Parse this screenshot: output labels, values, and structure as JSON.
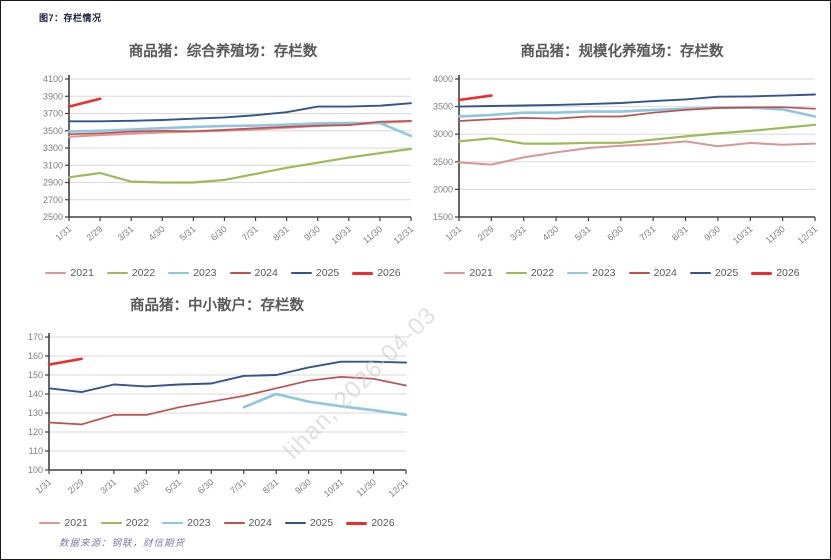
{
  "figure_label": "图7：存栏情况",
  "watermark": "lihan, 2026-04-03",
  "source_note": "数据来源：钢联，财信期货",
  "months": [
    "1/31",
    "2/29",
    "3/31",
    "4/30",
    "5/31",
    "6/30",
    "7/31",
    "8/31",
    "9/30",
    "10/31",
    "11/30",
    "12/31"
  ],
  "years": [
    "2021",
    "2022",
    "2023",
    "2024",
    "2025",
    "2026"
  ],
  "series_colors": {
    "2021": "#DA9694",
    "2022": "#9BBB59",
    "2023": "#8DC6E0",
    "2024": "#C0504D",
    "2025": "#31558C",
    "2026": "#EE2C2C"
  },
  "grid_color": "#d9d9d9",
  "axis_color": "#404040",
  "chart_data": [
    {
      "type": "line",
      "title": "商品猪：综合养殖场：存栏数",
      "xlabel": "",
      "ylabel": "",
      "ylim": [
        2500,
        4100
      ],
      "ystep": 200,
      "grid": true,
      "legend_position": "bottom",
      "categories": [
        "1/31",
        "2/29",
        "3/31",
        "4/30",
        "5/31",
        "6/30",
        "7/31",
        "8/31",
        "9/30",
        "10/31",
        "11/30",
        "12/31"
      ],
      "series": [
        {
          "name": "2021",
          "values": [
            3430,
            3450,
            3465,
            3480,
            3490,
            3500,
            3515,
            3535,
            3555,
            3570,
            3590,
            3610
          ]
        },
        {
          "name": "2022",
          "values": [
            2960,
            3010,
            2910,
            2900,
            2900,
            2930,
            3000,
            3070,
            3130,
            3190,
            3240,
            3290
          ]
        },
        {
          "name": "2023",
          "values": [
            3490,
            3500,
            3515,
            3530,
            3545,
            3555,
            3560,
            3570,
            3585,
            3590,
            3590,
            3440
          ]
        },
        {
          "name": "2024",
          "values": [
            3460,
            3470,
            3490,
            3500,
            3495,
            3510,
            3530,
            3545,
            3560,
            3565,
            3605,
            3615
          ]
        },
        {
          "name": "2025",
          "values": [
            3610,
            3610,
            3615,
            3625,
            3640,
            3655,
            3680,
            3715,
            3780,
            3780,
            3790,
            3820
          ]
        },
        {
          "name": "2026",
          "values": [
            3780,
            3870,
            null,
            null,
            null,
            null,
            null,
            null,
            null,
            null,
            null,
            null
          ]
        }
      ]
    },
    {
      "type": "line",
      "title": "商品猪：规模化养殖场：存栏数",
      "xlabel": "",
      "ylabel": "",
      "ylim": [
        1500,
        4000
      ],
      "ystep": 500,
      "grid": true,
      "legend_position": "bottom",
      "categories": [
        "1/31",
        "2/29",
        "3/31",
        "4/30",
        "5/31",
        "6/30",
        "7/31",
        "8/31",
        "9/30",
        "10/31",
        "11/30",
        "12/31"
      ],
      "series": [
        {
          "name": "2021",
          "values": [
            2490,
            2450,
            2580,
            2670,
            2750,
            2790,
            2820,
            2870,
            2780,
            2840,
            2810,
            2830
          ]
        },
        {
          "name": "2022",
          "values": [
            2870,
            2925,
            2830,
            2830,
            2845,
            2845,
            2900,
            2960,
            3015,
            3060,
            3115,
            3170
          ]
        },
        {
          "name": "2023",
          "values": [
            3320,
            3350,
            3390,
            3390,
            3410,
            3410,
            3440,
            3460,
            3480,
            3480,
            3450,
            3320
          ]
        },
        {
          "name": "2024",
          "values": [
            3240,
            3270,
            3295,
            3280,
            3320,
            3320,
            3390,
            3440,
            3475,
            3485,
            3490,
            3460
          ]
        },
        {
          "name": "2025",
          "values": [
            3500,
            3510,
            3520,
            3530,
            3545,
            3565,
            3600,
            3630,
            3680,
            3685,
            3700,
            3720
          ]
        },
        {
          "name": "2026",
          "values": [
            3620,
            3700,
            null,
            null,
            null,
            null,
            null,
            null,
            null,
            null,
            null,
            null
          ]
        }
      ]
    },
    {
      "type": "line",
      "title": "商品猪：中小散户：存栏数",
      "xlabel": "",
      "ylabel": "",
      "ylim": [
        100,
        170
      ],
      "ystep": 10,
      "grid": true,
      "legend_position": "bottom",
      "categories": [
        "1/31",
        "2/29",
        "3/31",
        "4/30",
        "5/31",
        "6/30",
        "7/31",
        "8/31",
        "9/30",
        "10/31",
        "11/30",
        "12/31"
      ],
      "series": [
        {
          "name": "2021",
          "values": [
            null,
            null,
            null,
            null,
            null,
            null,
            null,
            null,
            null,
            null,
            null,
            null
          ]
        },
        {
          "name": "2022",
          "values": [
            null,
            null,
            null,
            null,
            null,
            null,
            null,
            null,
            null,
            null,
            null,
            null
          ]
        },
        {
          "name": "2023",
          "values": [
            null,
            null,
            null,
            null,
            null,
            null,
            133,
            140,
            136,
            133.5,
            131.5,
            129
          ]
        },
        {
          "name": "2024",
          "values": [
            125,
            124,
            129,
            129,
            133,
            136,
            139,
            143,
            147,
            149,
            148,
            144.5
          ]
        },
        {
          "name": "2025",
          "values": [
            143,
            141,
            145,
            144,
            145,
            145.5,
            149.5,
            150,
            154,
            157,
            157,
            156.5
          ]
        },
        {
          "name": "2026",
          "values": [
            155.5,
            158.5,
            null,
            null,
            null,
            null,
            null,
            null,
            null,
            null,
            null,
            null
          ]
        }
      ]
    }
  ]
}
